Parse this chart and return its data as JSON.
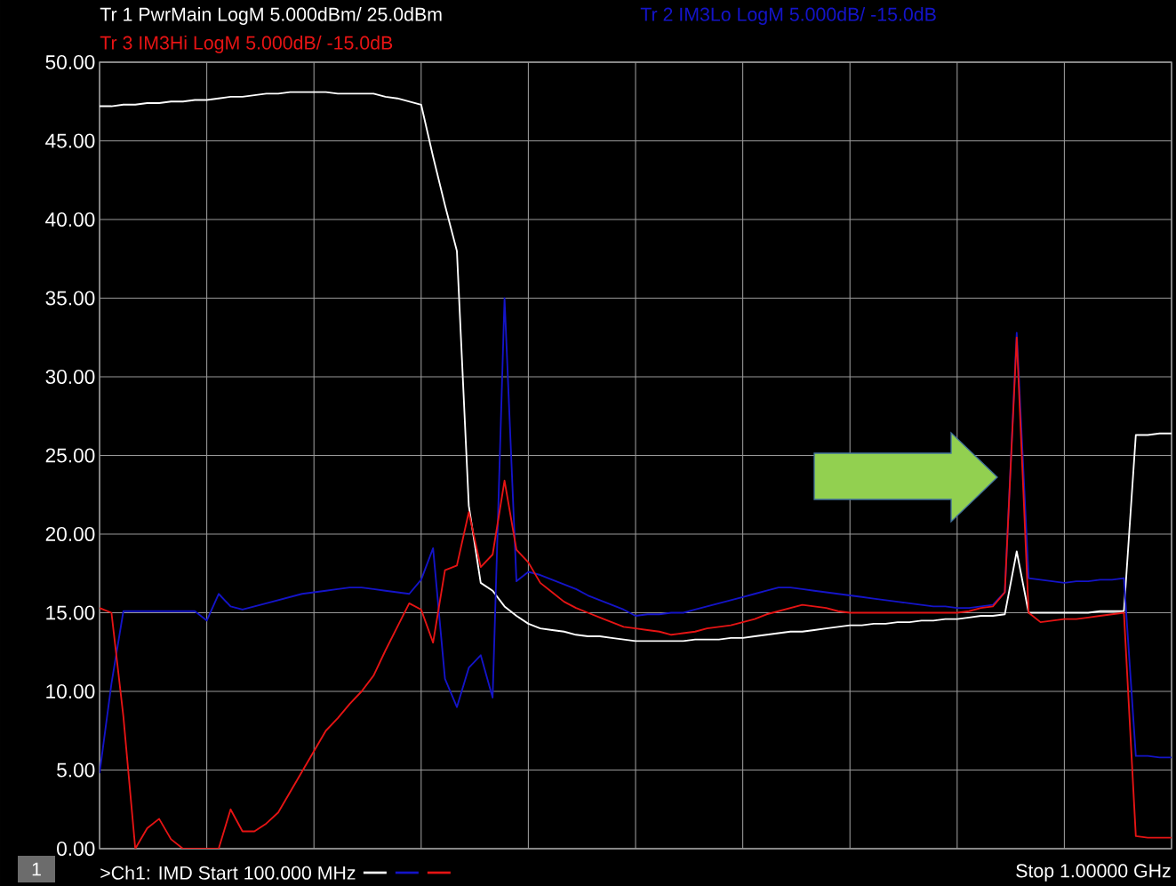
{
  "chart_data": {
    "type": "line",
    "categories": [
      null,
      null,
      null,
      null,
      null,
      null,
      null,
      null,
      null,
      null,
      null,
      null,
      null,
      null,
      null,
      null,
      null,
      null,
      null,
      null,
      null,
      null,
      null,
      null,
      null,
      null,
      null,
      null,
      null,
      null,
      null,
      null,
      null,
      null,
      null,
      null,
      null,
      null,
      null,
      null,
      null,
      null,
      null,
      null,
      null,
      null,
      null,
      null,
      null,
      null,
      null,
      null,
      null,
      null,
      null,
      null,
      null,
      null,
      null,
      null,
      null,
      null,
      null,
      null,
      null,
      null,
      null,
      null,
      null,
      null,
      null,
      null,
      null,
      null,
      null,
      null,
      null,
      null,
      null,
      null,
      null,
      null,
      null,
      null,
      null,
      null,
      null,
      null,
      null,
      null,
      null
    ],
    "ylim": [
      0,
      50
    ],
    "yticks": [
      {
        "value": 0,
        "label": "0.00"
      },
      {
        "value": 5,
        "label": "5.00"
      },
      {
        "value": 10,
        "label": "10.00"
      },
      {
        "value": 15,
        "label": "15.00"
      },
      {
        "value": 20,
        "label": "20.00"
      },
      {
        "value": 25,
        "label": "25.00"
      },
      {
        "value": 30,
        "label": "30.00"
      },
      {
        "value": 35,
        "label": "35.00"
      },
      {
        "value": 40,
        "label": "40.00"
      },
      {
        "value": 45,
        "label": "45.00"
      },
      {
        "value": 50,
        "label": "50.00"
      }
    ],
    "tick_labels": "y",
    "grid": true,
    "series": [
      {
        "name": "Tr 1  PwrMain LogM 5.000dBm/  25.0dBm",
        "color": "#ffffff",
        "values": [
          47.2,
          47.2,
          47.3,
          47.3,
          47.4,
          47.4,
          47.5,
          47.5,
          47.6,
          47.6,
          47.7,
          47.8,
          47.8,
          47.9,
          48.0,
          48.0,
          48.1,
          48.1,
          48.1,
          48.1,
          48.0,
          48.0,
          48.0,
          48.0,
          47.8,
          47.7,
          47.5,
          47.3,
          44.0,
          40.9,
          38.0,
          21.8,
          16.9,
          16.4,
          15.4,
          14.8,
          14.3,
          14.0,
          13.9,
          13.8,
          13.6,
          13.5,
          13.5,
          13.4,
          13.3,
          13.2,
          13.2,
          13.2,
          13.2,
          13.2,
          13.3,
          13.3,
          13.3,
          13.4,
          13.4,
          13.5,
          13.6,
          13.7,
          13.8,
          13.8,
          13.9,
          14.0,
          14.1,
          14.2,
          14.2,
          14.3,
          14.3,
          14.4,
          14.4,
          14.5,
          14.5,
          14.6,
          14.6,
          14.7,
          14.8,
          14.8,
          14.9,
          18.9,
          15.0,
          15.0,
          15.0,
          15.0,
          15.0,
          15.0,
          15.1,
          15.1,
          15.1,
          26.3,
          26.3,
          26.4,
          26.4
        ]
      },
      {
        "name": "Tr 2  IM3Lo LogM 5.000dB/  -15.0dB",
        "color": "#1414c8",
        "values": [
          4.8,
          10.5,
          15.1,
          15.1,
          15.1,
          15.1,
          15.1,
          15.1,
          15.1,
          14.5,
          16.2,
          15.4,
          15.2,
          15.4,
          15.6,
          15.8,
          16.0,
          16.2,
          16.3,
          16.4,
          16.5,
          16.6,
          16.6,
          16.5,
          16.4,
          16.3,
          16.2,
          17.1,
          19.1,
          10.8,
          9.0,
          11.5,
          12.3,
          9.6,
          35.0,
          17.0,
          17.6,
          17.4,
          17.1,
          16.8,
          16.5,
          16.1,
          15.8,
          15.5,
          15.2,
          14.8,
          14.9,
          14.9,
          15.0,
          15.0,
          15.2,
          15.4,
          15.6,
          15.8,
          16.0,
          16.2,
          16.4,
          16.6,
          16.6,
          16.5,
          16.4,
          16.3,
          16.2,
          16.1,
          16.0,
          15.9,
          15.8,
          15.7,
          15.6,
          15.5,
          15.4,
          15.4,
          15.3,
          15.3,
          15.4,
          15.5,
          16.3,
          32.8,
          17.2,
          17.1,
          17.0,
          16.9,
          17.0,
          17.0,
          17.1,
          17.1,
          17.2,
          5.9,
          5.9,
          5.8,
          5.8
        ]
      },
      {
        "name": "Tr 3  IM3Hi LogM 5.000dB/  -15.0dB",
        "color": "#e61414",
        "values": [
          15.3,
          15.0,
          8.4,
          0.0,
          1.3,
          1.9,
          0.6,
          0.0,
          0.0,
          0.0,
          0.0,
          2.5,
          1.1,
          1.1,
          1.6,
          2.3,
          3.6,
          4.9,
          6.2,
          7.5,
          8.3,
          9.2,
          10.0,
          11.0,
          12.6,
          14.1,
          15.6,
          15.2,
          13.1,
          17.7,
          18.0,
          21.4,
          17.9,
          18.7,
          23.4,
          19.0,
          18.2,
          16.9,
          16.3,
          15.7,
          15.3,
          15.0,
          14.7,
          14.4,
          14.1,
          14.0,
          13.9,
          13.8,
          13.6,
          13.7,
          13.8,
          14.0,
          14.1,
          14.2,
          14.4,
          14.6,
          14.9,
          15.1,
          15.3,
          15.5,
          15.4,
          15.3,
          15.1,
          15.0,
          15.0,
          15.0,
          15.0,
          15.0,
          15.0,
          15.0,
          15.0,
          15.0,
          15.0,
          15.1,
          15.3,
          15.4,
          16.3,
          32.5,
          15.0,
          14.4,
          14.5,
          14.6,
          14.6,
          14.7,
          14.8,
          14.9,
          15.0,
          0.8,
          0.7,
          0.7,
          0.7
        ]
      }
    ],
    "annotations": [
      "1",
      ">Ch1: IMD  Start  100.000 MHz",
      "Stop  1.00000 GHz"
    ]
  }
}
